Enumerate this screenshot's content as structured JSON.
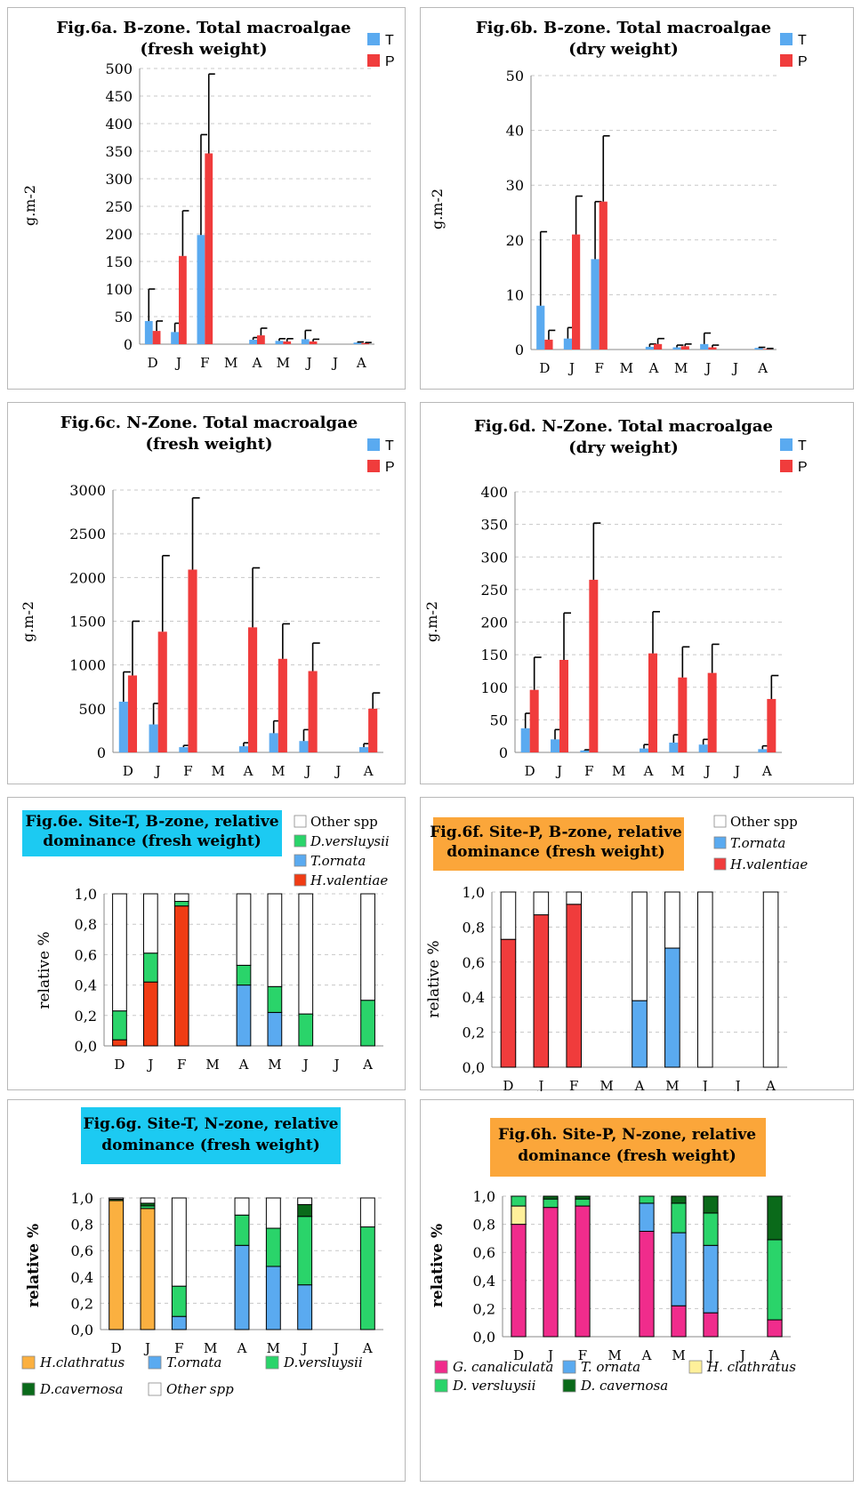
{
  "chart_data": [
    {
      "id": "6a",
      "type": "bar",
      "title": [
        "Fig.6a. B-zone. Total macroalgae",
        "(fresh weight)"
      ],
      "ylabel": "g.m-2",
      "ylim": [
        0,
        500
      ],
      "yticks": [
        0,
        50,
        100,
        150,
        200,
        250,
        300,
        350,
        400,
        450,
        500
      ],
      "grid": true,
      "legend_position": "top-right",
      "categories": [
        "D",
        "J",
        "F",
        "M",
        "A",
        "M",
        "J",
        "J",
        "A"
      ],
      "series": [
        {
          "name": "T",
          "color": "#5aaaf0",
          "values": [
            42,
            22,
            198,
            null,
            8,
            6,
            9,
            null,
            3
          ],
          "err": [
            100,
            38,
            380,
            null,
            12,
            10,
            25,
            null,
            4
          ]
        },
        {
          "name": "P",
          "color": "#f03c3c",
          "values": [
            24,
            160,
            346,
            null,
            16,
            5,
            5,
            null,
            2
          ],
          "err": [
            42,
            242,
            490,
            null,
            29,
            10,
            9,
            null,
            3
          ]
        }
      ]
    },
    {
      "id": "6b",
      "type": "bar",
      "title": [
        "Fig.6b. B-zone. Total macroalgae",
        "(dry weight)"
      ],
      "ylabel": "g.m-2",
      "ylim": [
        0,
        50
      ],
      "yticks": [
        0,
        10,
        20,
        30,
        40,
        50
      ],
      "grid": true,
      "legend_position": "top-right",
      "categories": [
        "D",
        "J",
        "F",
        "M",
        "A",
        "M",
        "J",
        "J",
        "A"
      ],
      "series": [
        {
          "name": "T",
          "color": "#5aaaf0",
          "values": [
            8,
            2,
            16.5,
            null,
            0.5,
            0.4,
            1.0,
            null,
            0.3
          ],
          "err": [
            21.5,
            4,
            27,
            null,
            1,
            0.8,
            3,
            null,
            0.4
          ]
        },
        {
          "name": "P",
          "color": "#f03c3c",
          "values": [
            1.8,
            21,
            27,
            null,
            1.0,
            0.6,
            0.4,
            null,
            0.1
          ],
          "err": [
            3.5,
            28,
            39,
            null,
            2,
            1,
            0.8,
            null,
            0.2
          ]
        }
      ]
    },
    {
      "id": "6c",
      "type": "bar",
      "title": [
        "Fig.6c. N-Zone. Total macroalgae",
        "(fresh weight)"
      ],
      "ylabel": "g.m-2",
      "ylim": [
        0,
        3000
      ],
      "yticks": [
        0,
        500,
        1000,
        1500,
        2000,
        2500,
        3000
      ],
      "grid": true,
      "legend_position": "top-right",
      "categories": [
        "D",
        "J",
        "F",
        "M",
        "A",
        "M",
        "J",
        "J",
        "A"
      ],
      "series": [
        {
          "name": "T",
          "color": "#5aaaf0",
          "values": [
            580,
            320,
            60,
            null,
            70,
            220,
            130,
            null,
            60
          ],
          "err": [
            920,
            560,
            80,
            null,
            110,
            360,
            260,
            null,
            100
          ]
        },
        {
          "name": "P",
          "color": "#f03c3c",
          "values": [
            880,
            1380,
            2090,
            null,
            1430,
            1070,
            930,
            null,
            500
          ],
          "err": [
            1500,
            2250,
            2910,
            null,
            2110,
            1470,
            1250,
            null,
            680
          ]
        }
      ]
    },
    {
      "id": "6d",
      "type": "bar",
      "title": [
        "Fig.6d. N-Zone. Total macroalgae",
        "(dry weight)"
      ],
      "ylabel": "g.m-2",
      "ylim": [
        0,
        400
      ],
      "yticks": [
        0,
        50,
        100,
        150,
        200,
        250,
        300,
        350,
        400
      ],
      "grid": true,
      "legend_position": "top-right",
      "categories": [
        "D",
        "J",
        "F",
        "M",
        "A",
        "M",
        "J",
        "J",
        "A"
      ],
      "series": [
        {
          "name": "T",
          "color": "#5aaaf0",
          "values": [
            37,
            20,
            3,
            null,
            6,
            15,
            12,
            null,
            5
          ],
          "err": [
            60,
            35,
            4,
            null,
            12,
            27,
            20,
            null,
            10
          ]
        },
        {
          "name": "P",
          "color": "#f03c3c",
          "values": [
            96,
            142,
            265,
            null,
            152,
            115,
            122,
            null,
            82
          ],
          "err": [
            146,
            214,
            352,
            null,
            216,
            162,
            166,
            null,
            118
          ]
        }
      ]
    },
    {
      "id": "6e",
      "type": "bar",
      "stacked": true,
      "title": [
        "Fig.6e. Site-T,  B-zone, relative",
        "dominance (fresh weight)"
      ],
      "title_bg": "#1ccaf2",
      "ylabel": "relative %",
      "ylim": [
        0,
        1
      ],
      "yticks": [
        "0,0",
        "0,2",
        "0,4",
        "0,6",
        "0,8",
        "1,0"
      ],
      "grid": true,
      "legend_position": "top-right",
      "categories": [
        "D",
        "J",
        "F",
        "M",
        "A",
        "M",
        "J",
        "J",
        "A"
      ],
      "series": [
        {
          "name": "H.valentiae",
          "color": "#f03c14",
          "values": [
            0.04,
            0.42,
            0.92,
            null,
            0,
            0,
            0,
            null,
            0
          ]
        },
        {
          "name": "T.ornata",
          "color": "#5aaaf0",
          "values": [
            0,
            0,
            0,
            null,
            0.4,
            0.22,
            0,
            null,
            0
          ]
        },
        {
          "name": "D.versluysii",
          "color": "#2ad46a",
          "values": [
            0.19,
            0.19,
            0.03,
            null,
            0.13,
            0.17,
            0.21,
            null,
            0.3
          ]
        },
        {
          "name": "Other spp",
          "color": "#ffffff",
          "values": [
            0.77,
            0.39,
            0.05,
            null,
            0.47,
            0.61,
            0.79,
            null,
            0.7
          ]
        }
      ]
    },
    {
      "id": "6f",
      "type": "bar",
      "stacked": true,
      "title": [
        "Fig.6f. Site-P, B-zone,  relative",
        "dominance (fresh weight)"
      ],
      "title_bg": "#fba63a",
      "ylabel": "relative %",
      "ylim": [
        0,
        1
      ],
      "yticks": [
        "0,0",
        "0,2",
        "0,4",
        "0,6",
        "0,8",
        "1,0"
      ],
      "grid": true,
      "legend_position": "top-right",
      "categories": [
        "D",
        "J",
        "F",
        "M",
        "A",
        "M",
        "J",
        "J",
        "A"
      ],
      "series": [
        {
          "name": "H.valentiae",
          "color": "#f03c3c",
          "values": [
            0.73,
            0.87,
            0.93,
            null,
            0,
            0,
            0,
            null,
            0
          ]
        },
        {
          "name": "T.ornata",
          "color": "#5aaaf0",
          "values": [
            0,
            0,
            0,
            null,
            0.38,
            0.68,
            0,
            null,
            0
          ]
        },
        {
          "name": "Other spp",
          "color": "#ffffff",
          "values": [
            0.27,
            0.13,
            0.07,
            null,
            0.62,
            0.32,
            1.0,
            null,
            1.0
          ]
        }
      ]
    },
    {
      "id": "6g",
      "type": "bar",
      "stacked": true,
      "title": [
        "Fig.6g. Site-T,  N-zone, relative",
        "dominance (fresh weight)"
      ],
      "title_bg": "#1ccaf2",
      "ylabel": "relative %",
      "ylim": [
        0,
        1
      ],
      "yticks": [
        "0,0",
        "0,2",
        "0,4",
        "0,6",
        "0,8",
        "1,0"
      ],
      "grid": true,
      "legend_position": "bottom",
      "categories": [
        "D",
        "J",
        "F",
        "M",
        "A",
        "M",
        "J",
        "J",
        "A"
      ],
      "series": [
        {
          "name": "H.clathratus",
          "color": "#fbb040",
          "values": [
            0.98,
            0.92,
            0,
            null,
            0,
            0,
            0,
            null,
            0
          ]
        },
        {
          "name": "T.ornata",
          "color": "#5aaaf0",
          "values": [
            0,
            0,
            0.1,
            null,
            0.64,
            0.48,
            0.34,
            null,
            0
          ]
        },
        {
          "name": "D.versluysii",
          "color": "#2ad46a",
          "values": [
            0,
            0.02,
            0.23,
            null,
            0.23,
            0.29,
            0.52,
            null,
            0.78
          ]
        },
        {
          "name": "D.cavernosa",
          "color": "#0a6a1a",
          "values": [
            0.01,
            0.02,
            0,
            null,
            0,
            0,
            0.09,
            null,
            0
          ]
        },
        {
          "name": "Other spp",
          "color": "#ffffff",
          "values": [
            0.01,
            0.04,
            0.67,
            null,
            0.13,
            0.23,
            0.05,
            null,
            0.22
          ]
        }
      ]
    },
    {
      "id": "6h",
      "type": "bar",
      "stacked": true,
      "title": [
        "Fig.6h. Site-P,  N-zone, relative",
        "dominance (fresh weight)"
      ],
      "title_bg": "#fba63a",
      "ylabel": "relative %",
      "ylim": [
        0,
        1
      ],
      "yticks": [
        "0,0",
        "0,2",
        "0,4",
        "0,6",
        "0,8",
        "1,0"
      ],
      "grid": true,
      "legend_position": "bottom",
      "categories": [
        "D",
        "J",
        "F",
        "M",
        "A",
        "M",
        "J",
        "J",
        "A"
      ],
      "series": [
        {
          "name": "G. canaliculata",
          "color": "#f02c8c",
          "values": [
            0.8,
            0.92,
            0.93,
            null,
            0.75,
            0.22,
            0.17,
            null,
            0.12
          ]
        },
        {
          "name": "T. ornata",
          "color": "#5aaaf0",
          "values": [
            0,
            0,
            0,
            null,
            0.2,
            0.52,
            0.48,
            null,
            0
          ]
        },
        {
          "name": "H. clathratus",
          "color": "#fff09a",
          "values": [
            0.13,
            0,
            0,
            null,
            0,
            0,
            0,
            null,
            0
          ]
        },
        {
          "name": "D. versluysii",
          "color": "#2ad46a",
          "values": [
            0.07,
            0.06,
            0.05,
            null,
            0.05,
            0.21,
            0.23,
            null,
            0.57
          ]
        },
        {
          "name": "D. cavernosa",
          "color": "#0a6a1a",
          "values": [
            0,
            0.02,
            0.02,
            null,
            0,
            0.05,
            0.12,
            null,
            0.31
          ]
        }
      ]
    }
  ]
}
